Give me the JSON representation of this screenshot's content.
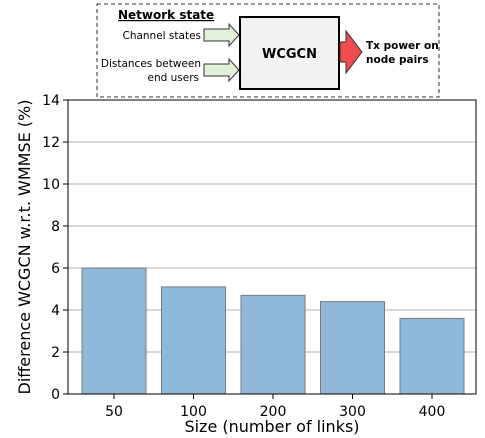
{
  "diagram": {
    "header": "Network state",
    "inputs": [
      "Channel states",
      "Distances between",
      "end users"
    ],
    "model": "WCGCN",
    "output": [
      "Tx power on",
      "node pairs"
    ],
    "colors": {
      "input_arrow": "#e2efd9",
      "output_arrow": "#f24b4b",
      "box": "#f2f2f2"
    }
  },
  "chart_data": {
    "type": "bar",
    "categories": [
      "50",
      "100",
      "200",
      "300",
      "400"
    ],
    "values": [
      6.0,
      5.1,
      4.7,
      4.4,
      3.6
    ],
    "xlabel": "Size (number of links)",
    "ylabel": "Difference WCGCN w.r.t. WMMSE (%)",
    "ylim": [
      0,
      14
    ],
    "yticks": [
      0,
      2,
      4,
      6,
      8,
      10,
      12,
      14
    ],
    "grid": true,
    "colors": {
      "bar_fill": "#8fb9db",
      "bar_edge": "#7a7a7a",
      "grid": "#b0b0b0"
    }
  }
}
